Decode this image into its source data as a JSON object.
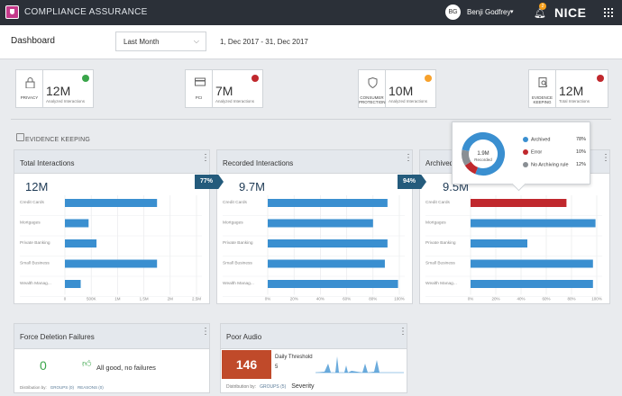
{
  "app": {
    "title": "COMPLIANCE ASSURANCE",
    "brand": "NICE",
    "user_initials": "BG",
    "user_name": "Benji Godfrey",
    "notifications": "2"
  },
  "header": {
    "page_title": "Dashboard",
    "date_select": "Last Month",
    "date_range": "1, Dec 2017 - 31, Dec 2017"
  },
  "kpis": [
    {
      "label": "PRIVACY",
      "value": "12M",
      "sub": "Analyzed Interactions",
      "status_color": "#3aa54a",
      "icon": "lock-icon"
    },
    {
      "label": "PCI",
      "value": "7M",
      "sub": "Analyzed Interactions",
      "status_color": "#c0282d",
      "icon": "credit-card-icon"
    },
    {
      "label": "CONSUMER PROTECTION",
      "value": "10M",
      "sub": "Analyzed Interactions",
      "status_color": "#f7a12c",
      "icon": "shield-icon"
    },
    {
      "label": "EVIDENCE KEEPING",
      "value": "12M",
      "sub": "Total Interactions",
      "status_color": "#c0282d",
      "icon": "document-search-icon"
    }
  ],
  "section": {
    "title": "EVIDENCE KEEPING"
  },
  "cards": {
    "total": {
      "title": "Total Interactions",
      "value": "12M",
      "conversion": "77%"
    },
    "recorded": {
      "title": "Recorded Interactions",
      "value": "9.7M",
      "conversion": "94%"
    },
    "archived": {
      "title": "Archived",
      "value": "9.5M"
    }
  },
  "popup": {
    "center_value": "1.9M",
    "center_label": "Recorded",
    "legend": [
      {
        "label": "Archived",
        "value": "78%",
        "color": "#3a8fd0"
      },
      {
        "label": "Error",
        "value": "10%",
        "color": "#c0282d"
      },
      {
        "label": "No Archiving rule",
        "value": "12%",
        "color": "#8a8f94"
      }
    ]
  },
  "bottom": {
    "force": {
      "title": "Force Deletion Failures",
      "value": "0",
      "message": "All good, no failures",
      "dist_label": "Distribution by:",
      "dist_a": "GROUPS (0)",
      "dist_b": "REASONS (0)"
    },
    "audio": {
      "title": "Poor Audio",
      "value": "146",
      "threshold_label": "Daily Threshold",
      "threshold_value": "5",
      "dist_label": "Distribution by:",
      "dist_a": "GROUPS (5)",
      "dist_b": "Severity"
    }
  },
  "chart_data": [
    {
      "type": "bar",
      "orientation": "horizontal",
      "title": "Total Interactions",
      "categories": [
        "Credit Cards",
        "Mortgages",
        "Private Banking",
        "Small Business",
        "Wealth Manag..."
      ],
      "values": [
        1750000,
        450000,
        600000,
        1750000,
        300000
      ],
      "xlim": [
        0,
        2500000
      ],
      "ticks": [
        0,
        500000,
        1000000,
        1500000,
        2000000,
        2500000
      ],
      "tick_labels": [
        "0",
        "500K",
        "1M",
        "1.5M",
        "2M",
        "2.5M"
      ],
      "colors": [
        "#3a8fd0",
        "#3a8fd0",
        "#3a8fd0",
        "#3a8fd0",
        "#3a8fd0"
      ]
    },
    {
      "type": "bar",
      "orientation": "horizontal",
      "title": "Recorded Interactions",
      "categories": [
        "Credit Cards",
        "Mortgages",
        "Private Banking",
        "Small Business",
        "Wealth Manag..."
      ],
      "values": [
        91,
        80,
        91,
        89,
        99
      ],
      "xlim": [
        0,
        100
      ],
      "ticks": [
        0,
        20,
        40,
        60,
        80,
        100
      ],
      "tick_labels": [
        "0%",
        "20%",
        "40%",
        "60%",
        "80%",
        "100%"
      ],
      "colors": [
        "#3a8fd0",
        "#3a8fd0",
        "#3a8fd0",
        "#3a8fd0",
        "#3a8fd0"
      ]
    },
    {
      "type": "bar",
      "orientation": "horizontal",
      "title": "Archived",
      "categories": [
        "Credit Cards",
        "Mortgages",
        "Private Banking",
        "Small Business",
        "Wealth Manag..."
      ],
      "values": [
        76,
        99,
        45,
        97,
        97
      ],
      "xlim": [
        0,
        100
      ],
      "ticks": [
        0,
        20,
        40,
        60,
        80,
        100
      ],
      "tick_labels": [
        "0%",
        "20%",
        "40%",
        "60%",
        "80%",
        "100%"
      ],
      "colors": [
        "#c0282d",
        "#3a8fd0",
        "#3a8fd0",
        "#3a8fd0",
        "#3a8fd0"
      ]
    },
    {
      "type": "pie",
      "title": "",
      "labels": [
        "Archived",
        "Error",
        "No Archiving rule"
      ],
      "values": [
        78,
        10,
        12
      ],
      "colors": [
        "#3a8fd0",
        "#c0282d",
        "#8a8f94"
      ]
    }
  ]
}
